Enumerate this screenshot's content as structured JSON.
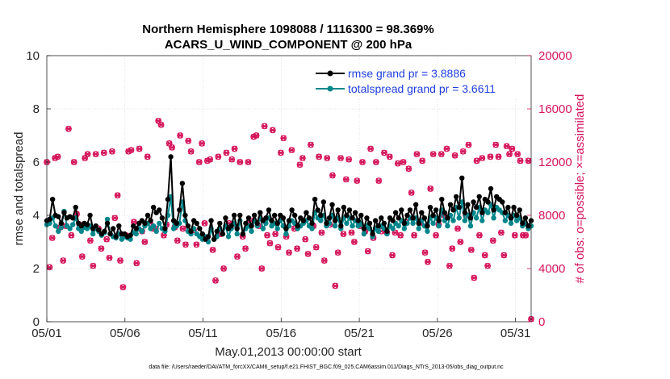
{
  "chart_data": {
    "type": "line",
    "title_line1": "Northern Hemisphere 1098088 / 1116300 = 98.369%",
    "title_line2": "ACARS_U_WIND_COMPONENT @ 200 hPa",
    "xlabel": "May.01,2013 00:00:00 start",
    "ylabel_left": "rmse and totalspread",
    "ylabel_right": "# of obs: o=possible; ×=assimilated",
    "footnote": "data file: /Users/raeder/DAI/ATM_forcXX/CAM6_setup/f.e21.FHIST_BGC.f09_025.CAM6assim.011/Diags_NTrS_2013-05/obs_diag_output.nc",
    "x_range": [
      1,
      32
    ],
    "ylim_left": [
      0,
      10
    ],
    "ylim_right": [
      0,
      20000
    ],
    "x_ticks": [
      {
        "value": 1,
        "label": "05/01"
      },
      {
        "value": 6,
        "label": "05/06"
      },
      {
        "value": 11,
        "label": "05/11"
      },
      {
        "value": 16,
        "label": "05/16"
      },
      {
        "value": 21,
        "label": "05/21"
      },
      {
        "value": 26,
        "label": "05/26"
      },
      {
        "value": 31,
        "label": "05/31"
      }
    ],
    "y_ticks_left": [
      "0",
      "2",
      "4",
      "6",
      "8",
      "10"
    ],
    "y_ticks_right": [
      "0",
      "4000",
      "8000",
      "12000",
      "16000",
      "20000"
    ],
    "legend": [
      {
        "label": "rmse grand pr = 3.8886",
        "series": "rmse"
      },
      {
        "label": "totalspread grand pr = 3.6611",
        "series": "totalspread"
      }
    ],
    "series": [
      {
        "name": "rmse",
        "color": "#000000",
        "marker": "circle",
        "axis": "left",
        "values": [
          3.8,
          3.85,
          4.6,
          4.0,
          3.95,
          3.7,
          4.1,
          3.9,
          3.95,
          3.9,
          4.3,
          3.7,
          3.6,
          3.7,
          3.65,
          4.0,
          3.5,
          3.6,
          3.45,
          3.3,
          3.4,
          3.7,
          3.3,
          3.5,
          3.2,
          3.6,
          3.3,
          3.3,
          3.2,
          3.25,
          3.6,
          3.5,
          3.7,
          3.8,
          3.7,
          4.0,
          3.8,
          4.3,
          4.1,
          4.2,
          3.9,
          3.5,
          4.6,
          6.2,
          3.8,
          3.7,
          4.2,
          5.2,
          4.0,
          3.6,
          3.4,
          3.8,
          3.7,
          3.5,
          3.3,
          3.1,
          3.2,
          3.8,
          3.1,
          3.4,
          3.7,
          3.3,
          3.9,
          3.5,
          3.6,
          4.0,
          3.5,
          4.0,
          3.3,
          3.7,
          3.9,
          3.6,
          4.0,
          3.7,
          4.1,
          3.8,
          3.9,
          4.2,
          3.8,
          4.0,
          3.7,
          4.0,
          3.9,
          3.5,
          3.8,
          4.2,
          4.0,
          3.6,
          3.9,
          3.8,
          4.1,
          3.9,
          3.7,
          4.6,
          4.2,
          4.0,
          4.5,
          3.7,
          3.9,
          4.4,
          3.8,
          4.2,
          3.6,
          4.3,
          4.0,
          4.2,
          3.9,
          4.1,
          3.8,
          4.0,
          3.5,
          3.9,
          3.7,
          3.3,
          3.8,
          3.6,
          3.9,
          3.7,
          3.4,
          3.9,
          3.8,
          4.1,
          3.9,
          4.2,
          3.7,
          4.0,
          4.2,
          3.9,
          4.4,
          3.7,
          4.1,
          3.9,
          3.6,
          4.3,
          4.0,
          4.2,
          3.8,
          4.6,
          4.1,
          3.9,
          4.4,
          4.2,
          4.7,
          4.3,
          5.4,
          4.1,
          4.4,
          3.9,
          4.5,
          4.3,
          4.7,
          4.1,
          4.6,
          4.5,
          5.0,
          4.2,
          4.7,
          4.6,
          4.5,
          4.1,
          4.3,
          3.9,
          4.3,
          4.0,
          4.2,
          3.7,
          3.9,
          3.6,
          3.8
        ]
      },
      {
        "name": "totalspread",
        "color": "#00868b",
        "marker": "circle",
        "axis": "left",
        "values": [
          3.65,
          3.7,
          3.9,
          3.6,
          3.4,
          3.55,
          4.15,
          3.6,
          3.5,
          3.65,
          3.9,
          3.5,
          3.4,
          3.55,
          3.5,
          3.6,
          3.3,
          3.5,
          3.4,
          3.25,
          3.35,
          3.85,
          3.3,
          3.2,
          3.15,
          3.3,
          3.1,
          3.2,
          3.15,
          3.1,
          3.35,
          3.3,
          3.5,
          3.4,
          3.6,
          3.7,
          3.5,
          3.6,
          3.4,
          3.7,
          3.5,
          3.4,
          4.0,
          4.7,
          3.5,
          3.6,
          3.7,
          4.5,
          3.8,
          3.4,
          3.3,
          3.5,
          3.3,
          3.2,
          3.1,
          3.2,
          3.0,
          3.5,
          3.1,
          3.2,
          3.5,
          3.3,
          3.6,
          3.2,
          3.5,
          3.7,
          3.3,
          3.8,
          3.3,
          3.5,
          3.6,
          3.4,
          3.8,
          3.6,
          3.9,
          3.5,
          3.7,
          3.9,
          3.6,
          3.7,
          3.5,
          3.8,
          3.6,
          3.3,
          3.6,
          3.8,
          3.7,
          3.5,
          3.6,
          3.7,
          3.8,
          3.6,
          3.5,
          4.1,
          3.9,
          3.8,
          4.0,
          3.6,
          3.7,
          4.0,
          3.6,
          3.9,
          3.5,
          3.9,
          3.7,
          3.9,
          3.6,
          3.8,
          3.6,
          3.7,
          3.3,
          3.6,
          3.5,
          3.2,
          3.5,
          3.4,
          3.6,
          3.5,
          3.3,
          3.6,
          3.5,
          3.7,
          3.6,
          3.8,
          3.5,
          3.7,
          3.9,
          3.7,
          3.9,
          3.5,
          3.8,
          3.6,
          3.4,
          3.9,
          3.7,
          3.9,
          3.6,
          4.2,
          3.8,
          3.6,
          4.0,
          3.8,
          4.3,
          3.9,
          4.5,
          3.8,
          4.0,
          3.6,
          4.1,
          3.9,
          4.3,
          3.8,
          4.2,
          4.1,
          4.4,
          3.9,
          4.3,
          4.2,
          4.1,
          3.8,
          4.0,
          3.7,
          4.0,
          3.8,
          3.9,
          3.6,
          3.7,
          3.5,
          3.6
        ]
      },
      {
        "name": "obs_possible",
        "color": "#d4145a",
        "marker": "o",
        "axis": "right",
        "values": [
          12000,
          4100,
          6300,
          12300,
          12400,
          7100,
          4600,
          7200,
          14500,
          6500,
          12000,
          8100,
          7300,
          4900,
          12300,
          12600,
          6100,
          4200,
          12600,
          7000,
          5500,
          12700,
          6200,
          4800,
          12800,
          7800,
          9500,
          4600,
          2600,
          6500,
          12800,
          12900,
          7500,
          4400,
          13000,
          6800,
          6000,
          12400,
          7400,
          7000,
          7000,
          15100,
          14800,
          6500,
          7300,
          13400,
          13100,
          7100,
          6100,
          14000,
          7000,
          5800,
          13600,
          12800,
          6900,
          5800,
          12000,
          13400,
          7400,
          12100,
          12200,
          5400,
          3100,
          12400,
          6600,
          4000,
          12700,
          7400,
          12200,
          13000,
          4900,
          12000,
          6400,
          5500,
          12000,
          7600,
          13900,
          14000,
          7200,
          4000,
          14700,
          6500,
          5900,
          14400,
          6600,
          5600,
          12700,
          13800,
          6400,
          5200,
          12900,
          7000,
          5500,
          11800,
          12300,
          6200,
          5100,
          13300,
          7200,
          5600,
          12400,
          6700,
          4600,
          12300,
          7300,
          11000,
          2700,
          5200,
          12300,
          6600,
          10700,
          12200,
          6700,
          6000,
          10600,
          7200,
          12000,
          6800,
          5300,
          13000,
          6300,
          12000,
          10600,
          6800,
          12700,
          6700,
          12400,
          5000,
          6700,
          11900,
          6500,
          12000,
          7500,
          11500,
          9700,
          6500,
          12600,
          7400,
          12100,
          5200,
          4500,
          10000,
          12600,
          6500,
          7300,
          12600,
          8000,
          13000,
          4200,
          5500,
          12500,
          7000,
          6000,
          12800,
          8000,
          13300,
          5400,
          3300,
          12100,
          6500,
          12300,
          5000,
          4200,
          12400,
          6100,
          13300,
          12400,
          6700,
          5000,
          13200,
          12600,
          13000,
          6500,
          12600,
          12100,
          6500,
          6500,
          12100,
          200
        ]
      },
      {
        "name": "obs_assimilated",
        "color": "#d4145a",
        "marker": "x",
        "axis": "right",
        "values": [
          12000,
          4100,
          6300,
          12300,
          12400,
          7100,
          4600,
          7200,
          14500,
          6500,
          12000,
          8100,
          7300,
          4900,
          12300,
          12600,
          6100,
          4200,
          12600,
          7000,
          5500,
          12700,
          6200,
          4800,
          12800,
          7800,
          9500,
          4600,
          2600,
          6500,
          12800,
          12900,
          7500,
          4400,
          13000,
          6800,
          6000,
          12400,
          7400,
          7000,
          7000,
          15100,
          14800,
          6500,
          7300,
          13400,
          13100,
          7100,
          6100,
          14000,
          7000,
          5800,
          13600,
          12800,
          6900,
          5800,
          12000,
          13400,
          7400,
          12100,
          12200,
          5400,
          3100,
          12400,
          6600,
          4000,
          12700,
          7400,
          12200,
          13000,
          4900,
          12000,
          6400,
          5500,
          12000,
          7600,
          13900,
          14000,
          7200,
          4000,
          14700,
          6500,
          5900,
          14400,
          6600,
          5600,
          12700,
          13800,
          6400,
          5200,
          12900,
          7000,
          5500,
          11800,
          12300,
          6200,
          5100,
          13300,
          7200,
          5600,
          12400,
          6700,
          4600,
          12300,
          7300,
          11000,
          2700,
          5200,
          12300,
          6600,
          10700,
          12200,
          6700,
          6000,
          10600,
          7200,
          12000,
          6800,
          5300,
          13000,
          6300,
          12000,
          10600,
          6800,
          12700,
          6700,
          12400,
          5000,
          6700,
          11900,
          6500,
          12000,
          7500,
          11500,
          9700,
          6500,
          12600,
          7400,
          12100,
          5200,
          4500,
          10000,
          12600,
          6500,
          7300,
          12600,
          8000,
          13000,
          4200,
          5500,
          12500,
          7000,
          6000,
          12800,
          8000,
          13300,
          5400,
          3300,
          12100,
          6500,
          12300,
          5000,
          4200,
          12400,
          6100,
          13300,
          12400,
          6700,
          5000,
          13200,
          12600,
          13000,
          6500,
          12600,
          12100,
          6500,
          6500,
          12100,
          200
        ]
      }
    ]
  }
}
